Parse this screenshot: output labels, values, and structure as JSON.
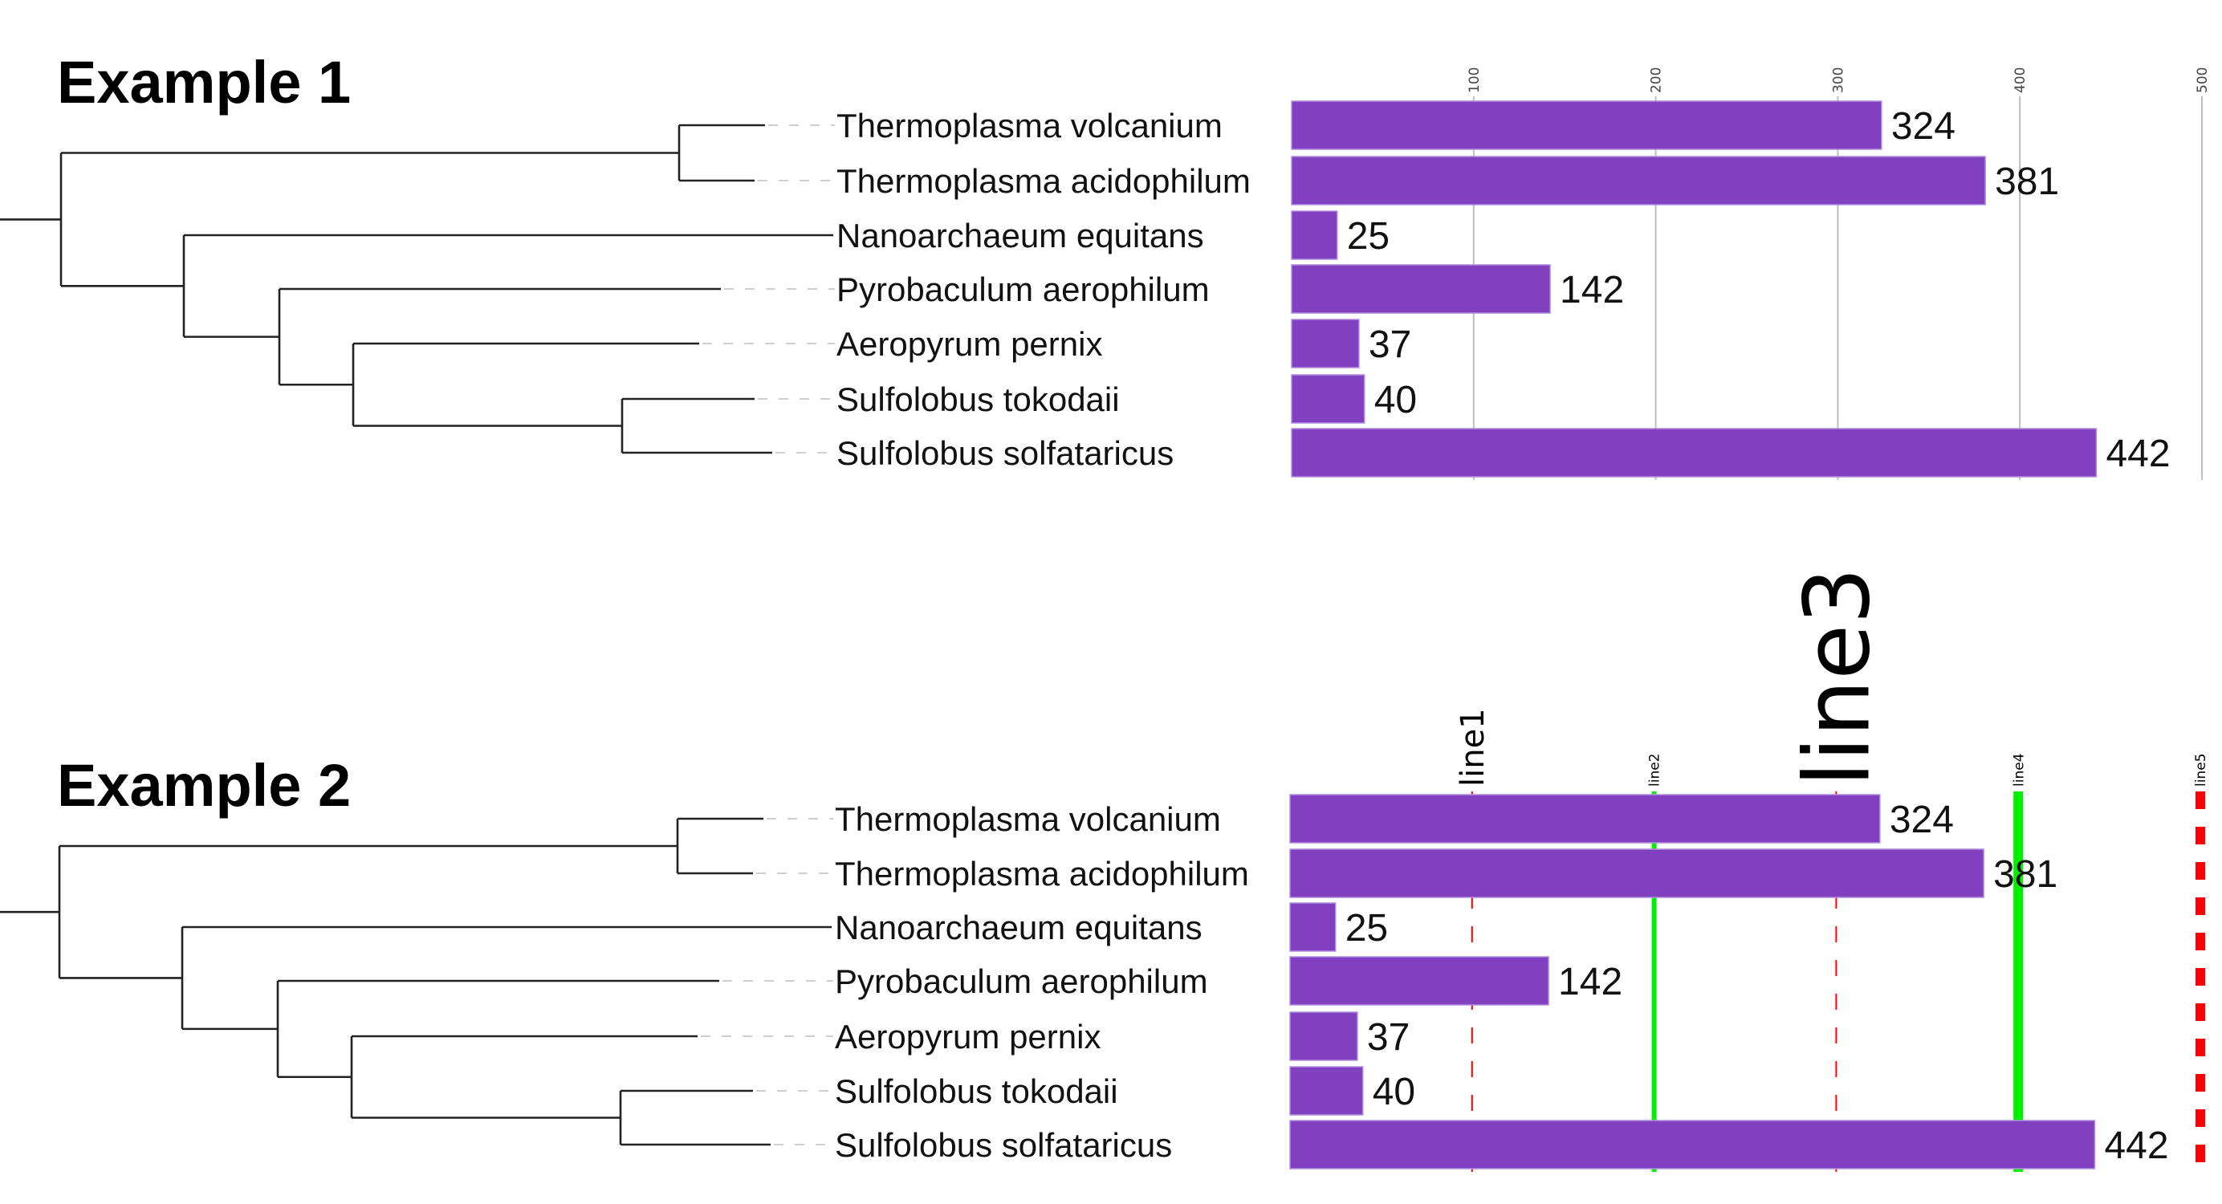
{
  "chart_data": [
    {
      "type": "bar",
      "title": "Example 1",
      "orientation": "horizontal",
      "categories": [
        "Thermoplasma volcanium",
        "Thermoplasma acidophilum",
        "Nanoarchaeum equitans",
        "Pyrobaculum aerophilum",
        "Aeropyrum pernix",
        "Sulfolobus tokodaii",
        "Sulfolobus solfataricus"
      ],
      "values": [
        324,
        381,
        25,
        142,
        37,
        40,
        442
      ],
      "value_labels": [
        "324",
        "381",
        "25",
        "142",
        "37",
        "40",
        "442"
      ],
      "xlim": [
        0,
        500
      ],
      "x_ticks": [
        100,
        200,
        300,
        400,
        500
      ],
      "x_tick_labels": [
        "100",
        "200",
        "300",
        "400",
        "500"
      ],
      "grid": true,
      "bar_color": "#8040bf",
      "tree": "phylogenetic tree on left: ((Thermoplasma volcanium, Thermoplasma acidophilum), (Nanoarchaeum equitans, (Pyrobaculum aerophilum, (Aeropyrum pernix, (Sulfolobus tokodaii, Sulfolobus solfataricus)))))"
    },
    {
      "type": "bar",
      "title": "Example 2",
      "orientation": "horizontal",
      "categories": [
        "Thermoplasma volcanium",
        "Thermoplasma acidophilum",
        "Nanoarchaeum equitans",
        "Pyrobaculum aerophilum",
        "Aeropyrum pernix",
        "Sulfolobus tokodaii",
        "Sulfolobus solfataricus"
      ],
      "values": [
        324,
        381,
        25,
        142,
        37,
        40,
        442
      ],
      "value_labels": [
        "324",
        "381",
        "25",
        "142",
        "37",
        "40",
        "442"
      ],
      "xlim": [
        0,
        500
      ],
      "grid": false,
      "bar_color": "#8040bf",
      "reference_lines": [
        {
          "label": "line1",
          "x": 100,
          "color": "#ff0000",
          "style": "dashed",
          "weight": "thin",
          "label_size": "medium"
        },
        {
          "label": "line2",
          "x": 200,
          "color": "#00ee00",
          "style": "solid",
          "weight": "medium",
          "label_size": "small"
        },
        {
          "label": "line3",
          "x": 300,
          "color": "#ff0000",
          "style": "dashed",
          "weight": "thin",
          "label_size": "large"
        },
        {
          "label": "line4",
          "x": 400,
          "color": "#00ee00",
          "style": "solid",
          "weight": "thick",
          "label_size": "small"
        },
        {
          "label": "line5",
          "x": 500,
          "color": "#ff0000",
          "style": "dashed",
          "weight": "thick",
          "label_size": "small"
        }
      ]
    }
  ]
}
